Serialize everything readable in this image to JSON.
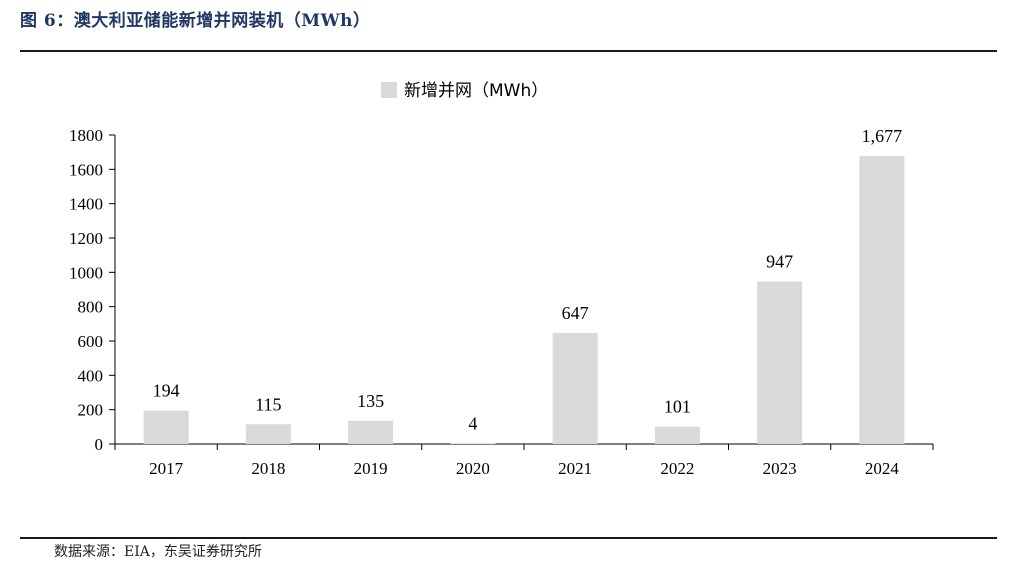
{
  "figure": {
    "title": "图 6：澳大利亚储能新增并网装机（MWh）",
    "source": "数据来源：EIA，东吴证券研究所"
  },
  "colors": {
    "bar": "#d9d9d9",
    "axis": "#000000",
    "title": "#1f3864"
  },
  "chart_data": {
    "type": "bar",
    "categories": [
      "2017",
      "2018",
      "2019",
      "2020",
      "2021",
      "2022",
      "2023",
      "2024"
    ],
    "series": [
      {
        "name": "新增并网（MWh）",
        "values": [
          194,
          115,
          135,
          4,
          647,
          101,
          947,
          1677
        ]
      }
    ],
    "data_labels": [
      "194",
      "115",
      "135",
      "4",
      "647",
      "101",
      "947",
      "1,677"
    ],
    "ylim": [
      0,
      1800
    ],
    "yticks": [
      0,
      200,
      400,
      600,
      800,
      1000,
      1200,
      1400,
      1600,
      1800
    ],
    "legend_position": "top-center",
    "grid": false
  }
}
